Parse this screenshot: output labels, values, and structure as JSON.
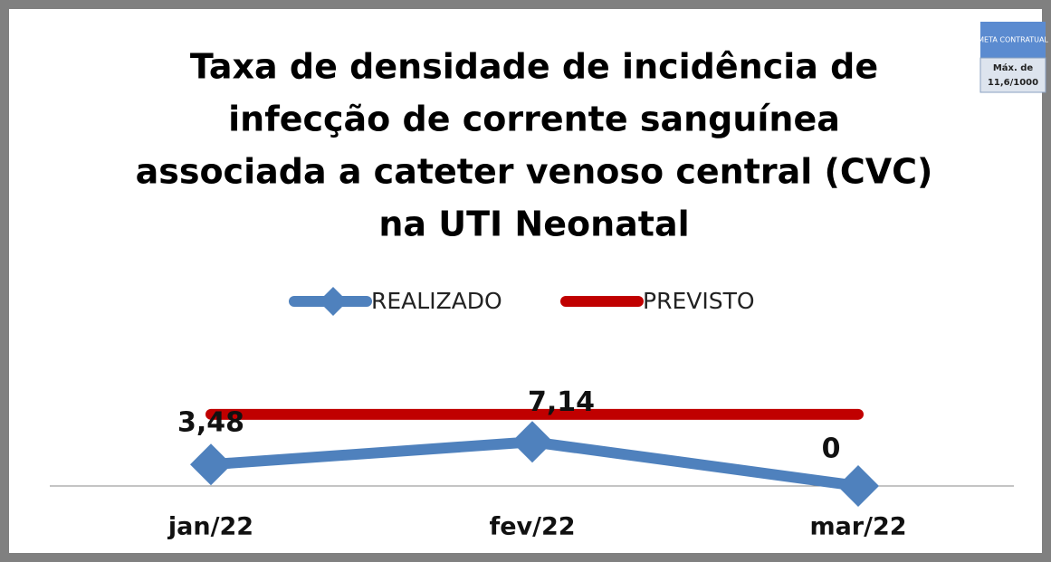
{
  "chart_data": {
    "type": "line",
    "title": [
      "Taxa de densidade de incidência de",
      "infecção de corrente sanguínea",
      "associada a cateter venoso central (CVC)",
      "na UTI Neonatal"
    ],
    "categories": [
      "jan/22",
      "fev/22",
      "mar/22"
    ],
    "series": [
      {
        "name": "REALIZADO",
        "color": "#4f81bd",
        "values": [
          3.48,
          7.14,
          0
        ],
        "value_labels": [
          "3,48",
          "7,14",
          "0"
        ],
        "marker": "diamond"
      },
      {
        "name": "PREVISTO",
        "color": "#c00000",
        "values": [
          11.6,
          11.6,
          11.6
        ]
      }
    ],
    "ylim": [
      0,
      23
    ],
    "legend": "top",
    "badge": {
      "header": "META CONTRATUAL",
      "lines": [
        "Máx. de",
        "11,6/1000"
      ]
    }
  }
}
